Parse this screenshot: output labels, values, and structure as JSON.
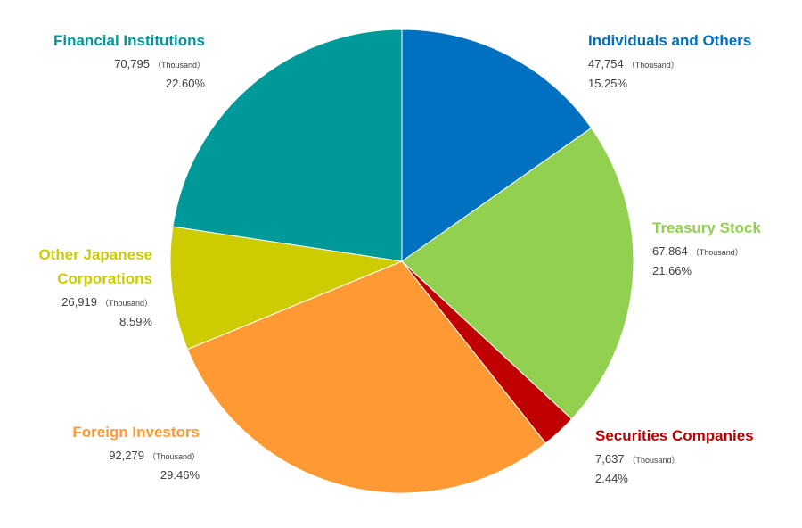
{
  "chart_data": {
    "type": "pie",
    "unit_label": "（Thousand）",
    "slices": [
      {
        "name": "Individuals and Others",
        "value": 47754,
        "value_text": "47,754",
        "percent_text": "15.25%",
        "color": "#0070C0"
      },
      {
        "name": "Treasury Stock",
        "value": 67864,
        "value_text": "67,864",
        "percent_text": "21.66%",
        "color": "#92D050"
      },
      {
        "name": "Securities Companies",
        "value": 7637,
        "value_text": "7,637",
        "percent_text": "2.44%",
        "color": "#C00000"
      },
      {
        "name": "Foreign Investors",
        "value": 92279,
        "value_text": "92,279",
        "percent_text": "29.46%",
        "color": "#FF9933"
      },
      {
        "name": "Other Japanese Corporations",
        "name_lines": [
          "Other Japanese",
          "Corporations"
        ],
        "value": 26919,
        "value_text": "26,919",
        "percent_text": "8.59%",
        "color": "#CCCC00"
      },
      {
        "name": "Financial Institutions",
        "value": 70795,
        "value_text": "70,795",
        "percent_text": "22.60%",
        "color": "#009999"
      }
    ]
  }
}
